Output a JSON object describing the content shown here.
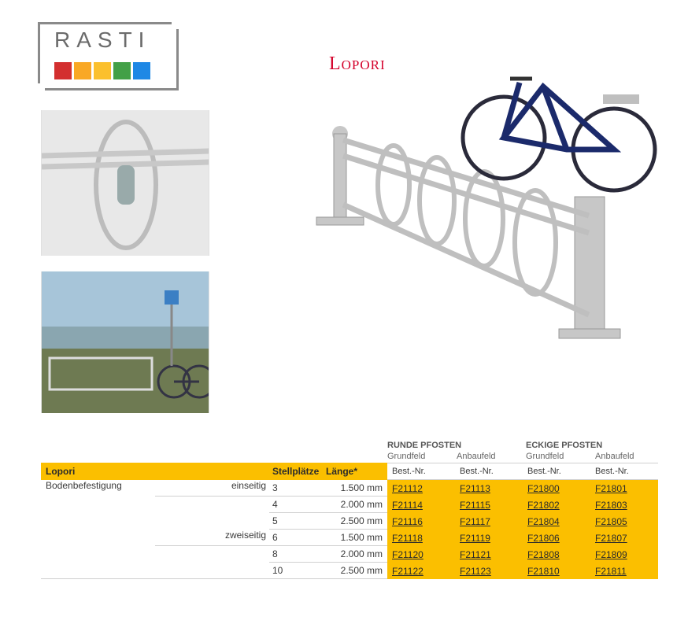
{
  "brand": {
    "name": "RASTI",
    "square_colors": [
      "#d32f2f",
      "#f9a825",
      "#fbc02d",
      "#43a047",
      "#1e88e5"
    ]
  },
  "title": "Lopori",
  "table": {
    "group_heads": [
      "RUNDE PFOSTEN",
      "ECKIGE PFOSTEN"
    ],
    "sub_heads": [
      "Grundfeld",
      "Anbaufeld",
      "Grundfeld",
      "Anbaufeld"
    ],
    "head_name": "Lopori",
    "head_stell": "Stellplätze",
    "head_len": "Länge*",
    "head_bn": "Best.-Nr.",
    "mount": "Bodenbefestigung",
    "sides": {
      "one": "einseitig",
      "two": "zweiseitig"
    },
    "rows": [
      {
        "side": "one",
        "stell": "3",
        "len": "1.500 mm",
        "codes": [
          "F21112",
          "F21113",
          "F21800",
          "F21801"
        ]
      },
      {
        "side": "one",
        "stell": "4",
        "len": "2.000 mm",
        "codes": [
          "F21114",
          "F21115",
          "F21802",
          "F21803"
        ]
      },
      {
        "side": "one",
        "stell": "5",
        "len": "2.500 mm",
        "codes": [
          "F21116",
          "F21117",
          "F21804",
          "F21805"
        ]
      },
      {
        "side": "two",
        "stell": "6",
        "len": "1.500 mm",
        "codes": [
          "F21118",
          "F21119",
          "F21806",
          "F21807"
        ]
      },
      {
        "side": "two",
        "stell": "8",
        "len": "2.000 mm",
        "codes": [
          "F21120",
          "F21121",
          "F21808",
          "F21809"
        ]
      },
      {
        "side": "two",
        "stell": "10",
        "len": "2.500 mm",
        "codes": [
          "F21122",
          "F21123",
          "F21810",
          "F21811"
        ]
      }
    ]
  },
  "images": {
    "detail": "detail",
    "scene": "scene",
    "main": ""
  }
}
